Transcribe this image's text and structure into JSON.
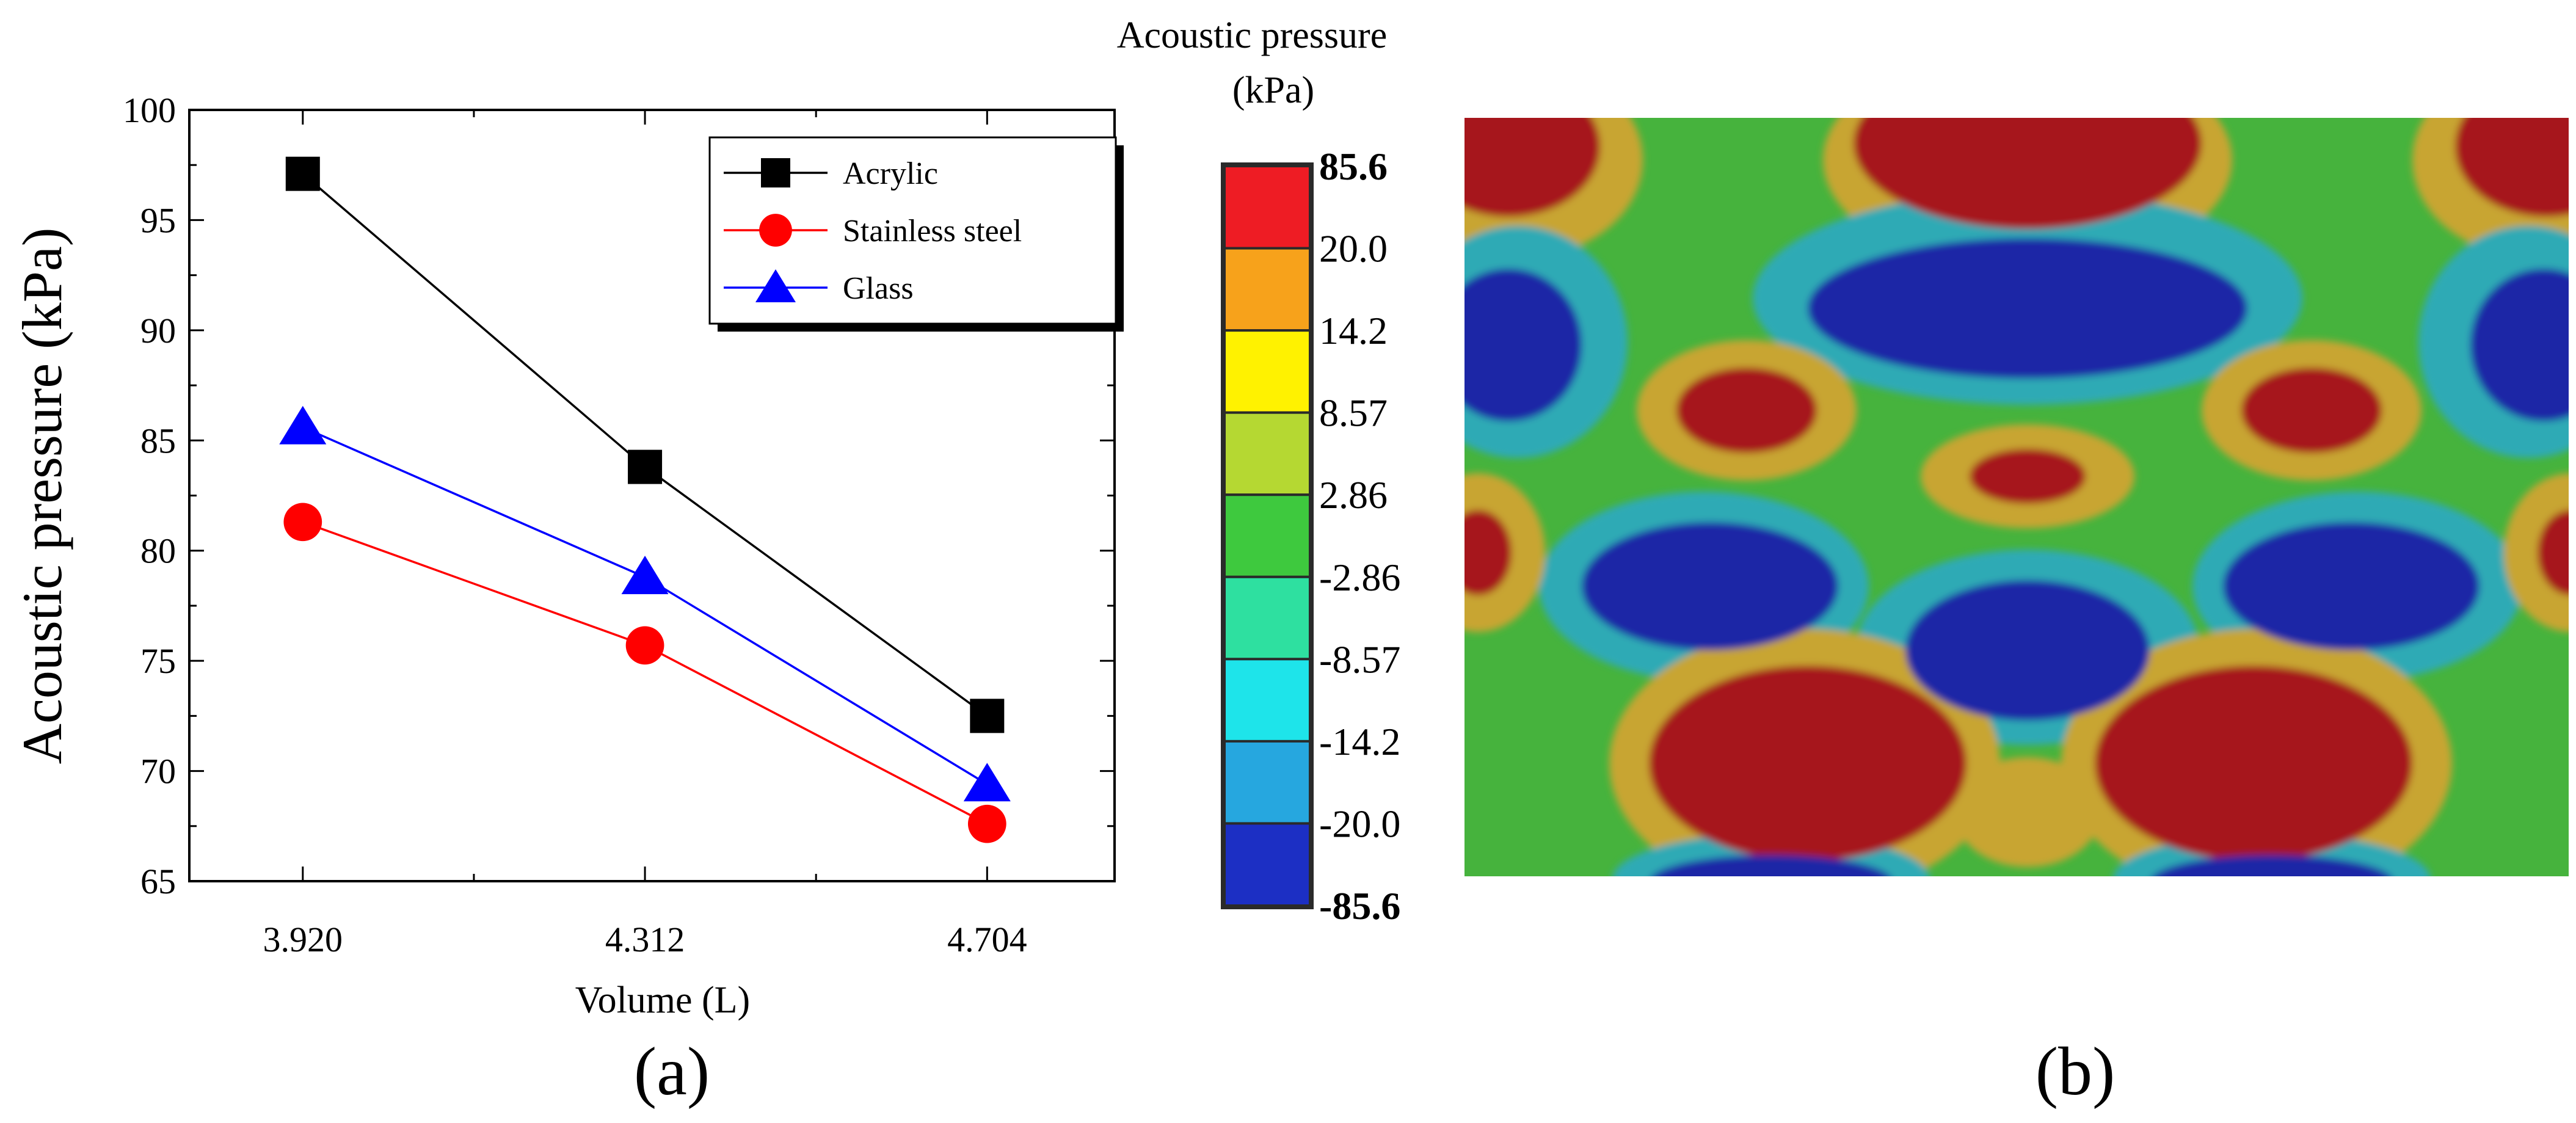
{
  "chart_data": [
    {
      "type": "line",
      "panel": "(a)",
      "xlabel": "Volume (L)",
      "ylabel": "Acoustic pressure (kPa)",
      "categories": [
        "3.920",
        "4.312",
        "4.704"
      ],
      "x": [
        3.92,
        4.312,
        4.704
      ],
      "xlim": [
        3.79,
        4.85
      ],
      "ylim": [
        65,
        100
      ],
      "yticks": [
        "65",
        "70",
        "75",
        "80",
        "85",
        "90",
        "95",
        "100"
      ],
      "legend_position": "top-right",
      "series": [
        {
          "name": "Acrylic",
          "values": [
            97.1,
            83.8,
            72.5
          ],
          "color": "#000000",
          "marker": "square"
        },
        {
          "name": "Stainless steel",
          "values": [
            81.3,
            75.7,
            67.6
          ],
          "color": "#ff0000",
          "marker": "circle"
        },
        {
          "name": "Glass",
          "values": [
            85.6,
            78.8,
            69.4
          ],
          "color": "#0000ff",
          "marker": "triangle"
        }
      ]
    },
    {
      "type": "heatmap",
      "panel": "(b)",
      "colorbar": {
        "title_line1": "Acoustic pressure",
        "title_line2": "(kPa)",
        "labels": [
          "85.6",
          "20.0",
          "14.2",
          "8.57",
          "2.86",
          "-2.86",
          "-8.57",
          "-14.2",
          "-20.0",
          "-85.6"
        ],
        "label_colors": [
          "#e0201c",
          "#000000",
          "#000000",
          "#000000",
          "#000000",
          "#000000",
          "#000000",
          "#000000",
          "#000000",
          "#1a78c2"
        ],
        "colors": [
          "#ee1c24",
          "#f7a21b",
          "#fff200",
          "#b5d832",
          "#3ec93e",
          "#2ee0a0",
          "#1ee4ea",
          "#26a7df",
          "#1c2fc4"
        ]
      },
      "field_colors": {
        "background": "#46b33d",
        "positive_peak": "#a6191d",
        "positive_mid": "#c8a533",
        "negative_mid": "#2eaab5",
        "negative_peak": "#1a27a6"
      }
    }
  ]
}
